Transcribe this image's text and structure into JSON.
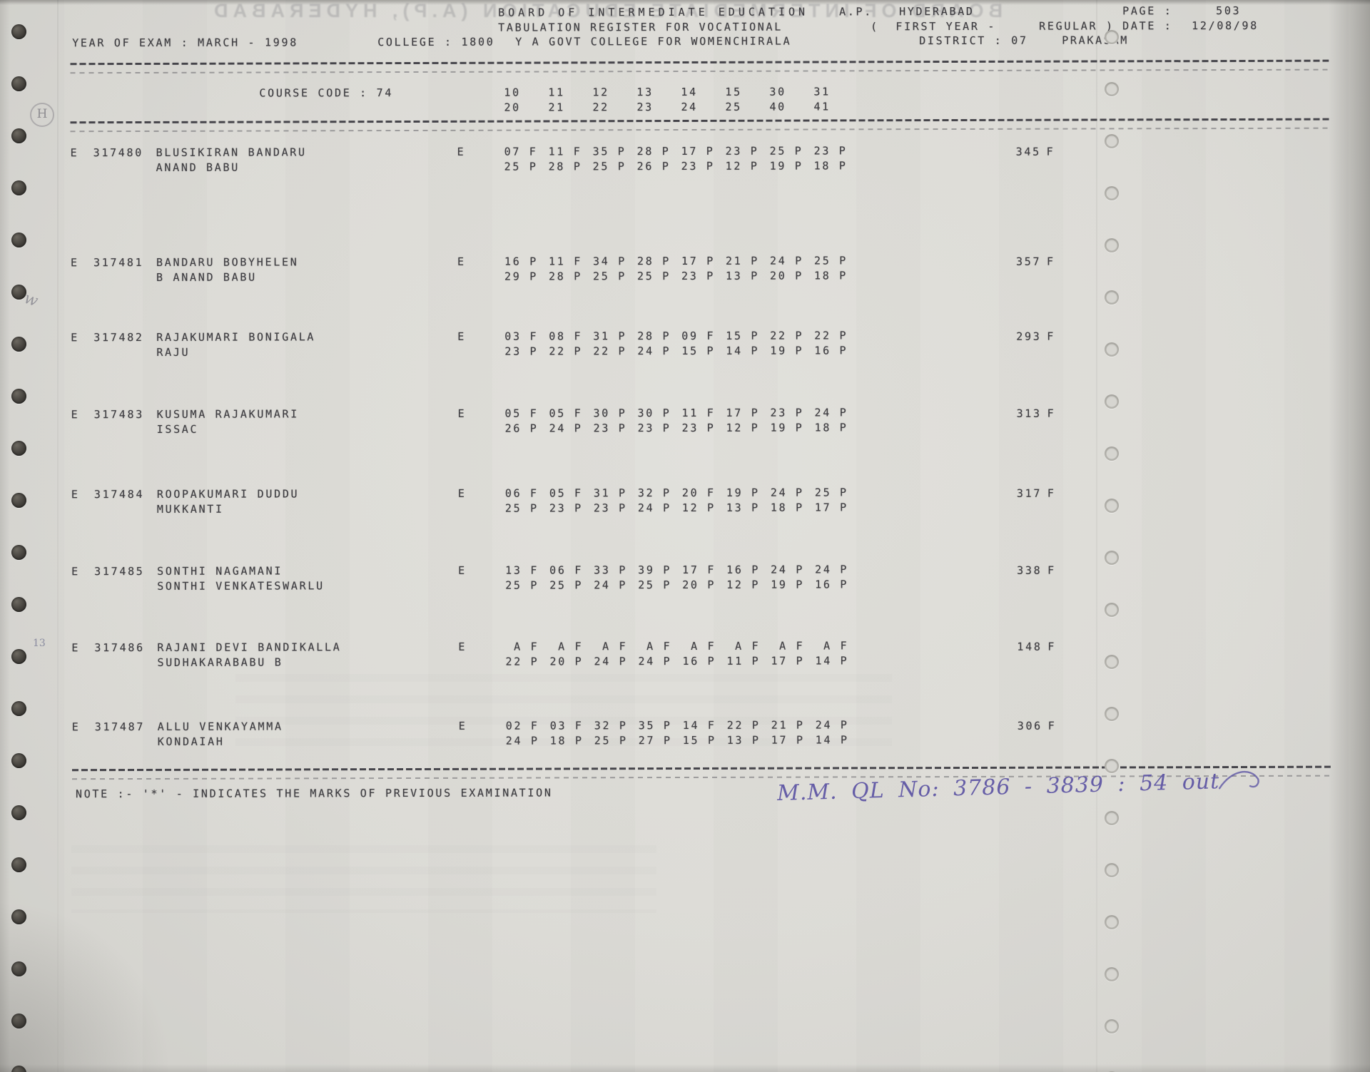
{
  "header": {
    "board": "BOARD OF INTERMEDIATE EDUCATION",
    "ap": "A.P.",
    "city": "HYDERABAD",
    "page_label": "PAGE :",
    "page_value": "503",
    "register": "TABULATION REGISTER FOR VOCATIONAL",
    "first_year": "(  FIRST YEAR -",
    "regular": "REGULAR )",
    "date_label": "DATE :",
    "date_value": "12/08/98",
    "year_of_exam": "YEAR OF EXAM : MARCH - 1998",
    "college_label": "COLLEGE : 1800",
    "college_name": "Y A GOVT COLLEGE FOR WOMENCHIRALA",
    "district_label": "DISTRICT : 07",
    "district_name": "PRAKASAM"
  },
  "course": {
    "label": "COURSE CODE : 74",
    "subject_row1": [
      "10",
      "11",
      "12",
      "13",
      "14",
      "15",
      "30",
      "31"
    ],
    "subject_row2": [
      "20",
      "21",
      "22",
      "23",
      "24",
      "25",
      "40",
      "41"
    ]
  },
  "students": [
    {
      "prefix": "E",
      "regno": "317480",
      "name_line1": "BLUSIKIRAN BANDARU",
      "name_line2": "ANAND BABU",
      "medium": "E",
      "marks_row1": [
        "07 F",
        "11 F",
        "35 P",
        "28 P",
        "17 P",
        "23 P",
        "25 P",
        "23 P"
      ],
      "marks_row2": [
        "25 P",
        "28 P",
        "25 P",
        "26 P",
        "23 P",
        "12 P",
        "19 P",
        "18 P"
      ],
      "total": "345",
      "result": "F"
    },
    {
      "prefix": "E",
      "regno": "317481",
      "name_line1": "BANDARU BOBYHELEN",
      "name_line2": "B ANAND BABU",
      "medium": "E",
      "marks_row1": [
        "16 P",
        "11 F",
        "34 P",
        "28 P",
        "17 P",
        "21 P",
        "24 P",
        "25 P"
      ],
      "marks_row2": [
        "29 P",
        "28 P",
        "25 P",
        "25 P",
        "23 P",
        "13 P",
        "20 P",
        "18 P"
      ],
      "total": "357",
      "result": "F"
    },
    {
      "prefix": "E",
      "regno": "317482",
      "name_line1": "RAJAKUMARI BONIGALA",
      "name_line2": "RAJU",
      "medium": "E",
      "marks_row1": [
        "03 F",
        "08 F",
        "31 P",
        "28 P",
        "09 F",
        "15 P",
        "22 P",
        "22 P"
      ],
      "marks_row2": [
        "23 P",
        "22 P",
        "22 P",
        "24 P",
        "15 P",
        "14 P",
        "19 P",
        "16 P"
      ],
      "total": "293",
      "result": "F"
    },
    {
      "prefix": "E",
      "regno": "317483",
      "name_line1": "KUSUMA RAJAKUMARI",
      "name_line2": "ISSAC",
      "medium": "E",
      "marks_row1": [
        "05 F",
        "05 F",
        "30 P",
        "30 P",
        "11 F",
        "17 P",
        "23 P",
        "24 P"
      ],
      "marks_row2": [
        "26 P",
        "24 P",
        "23 P",
        "23 P",
        "23 P",
        "12 P",
        "19 P",
        "18 P"
      ],
      "total": "313",
      "result": "F"
    },
    {
      "prefix": "E",
      "regno": "317484",
      "name_line1": "ROOPAKUMARI DUDDU",
      "name_line2": "MUKKANTI",
      "medium": "E",
      "marks_row1": [
        "06 F",
        "05 F",
        "31 P",
        "32 P",
        "20 F",
        "19 P",
        "24 P",
        "25 P"
      ],
      "marks_row2": [
        "25 P",
        "23 P",
        "23 P",
        "24 P",
        "12 P",
        "13 P",
        "18 P",
        "17 P"
      ],
      "total": "317",
      "result": "F"
    },
    {
      "prefix": "E",
      "regno": "317485",
      "name_line1": "SONTHI NAGAMANI",
      "name_line2": "SONTHI VENKATESWARLU",
      "medium": "E",
      "marks_row1": [
        "13 F",
        "06 F",
        "33 P",
        "39 P",
        "17 F",
        "16 P",
        "24 P",
        "24 P"
      ],
      "marks_row2": [
        "25 P",
        "25 P",
        "24 P",
        "25 P",
        "20 P",
        "12 P",
        "19 P",
        "16 P"
      ],
      "total": "338",
      "result": "F"
    },
    {
      "prefix": "E",
      "regno": "317486",
      "name_line1": "RAJANI DEVI BANDIKALLA",
      "name_line2": "SUDHAKARABABU B",
      "medium": "E",
      "marks_row1": [
        " A F",
        " A F",
        " A F",
        " A F",
        " A F",
        " A F",
        " A F",
        " A F"
      ],
      "marks_row2": [
        "22 P",
        "20 P",
        "24 P",
        "24 P",
        "16 P",
        "11 P",
        "17 P",
        "14 P"
      ],
      "total": "148",
      "result": "F"
    },
    {
      "prefix": "E",
      "regno": "317487",
      "name_line1": "ALLU VENKAYAMMA",
      "name_line2": "KONDAIAH",
      "medium": "E",
      "marks_row1": [
        "02 F",
        "03 F",
        "32 P",
        "35 P",
        "14 F",
        "22 P",
        "21 P",
        "24 P"
      ],
      "marks_row2": [
        "24 P",
        "18 P",
        "25 P",
        "27 P",
        "15 P",
        "13 P",
        "17 P",
        "14 P"
      ],
      "total": "306",
      "result": "F"
    }
  ],
  "note": "NOTE :- '*' - INDICATES THE MARKS OF PREVIOUS EXAMINATION",
  "handwritten_note": "M.M. QL No: 3786 - 3839 : 54 out",
  "ghost_text": "BOARD OF INTERMEDIATE EDUCATION (A.P), HYDERABAD",
  "pencil_marks": [
    "H",
    "w",
    "13"
  ],
  "colors": {
    "paper": "#dcdbd6",
    "ink": "#3e3d41",
    "pen_ink": "#564da1"
  }
}
